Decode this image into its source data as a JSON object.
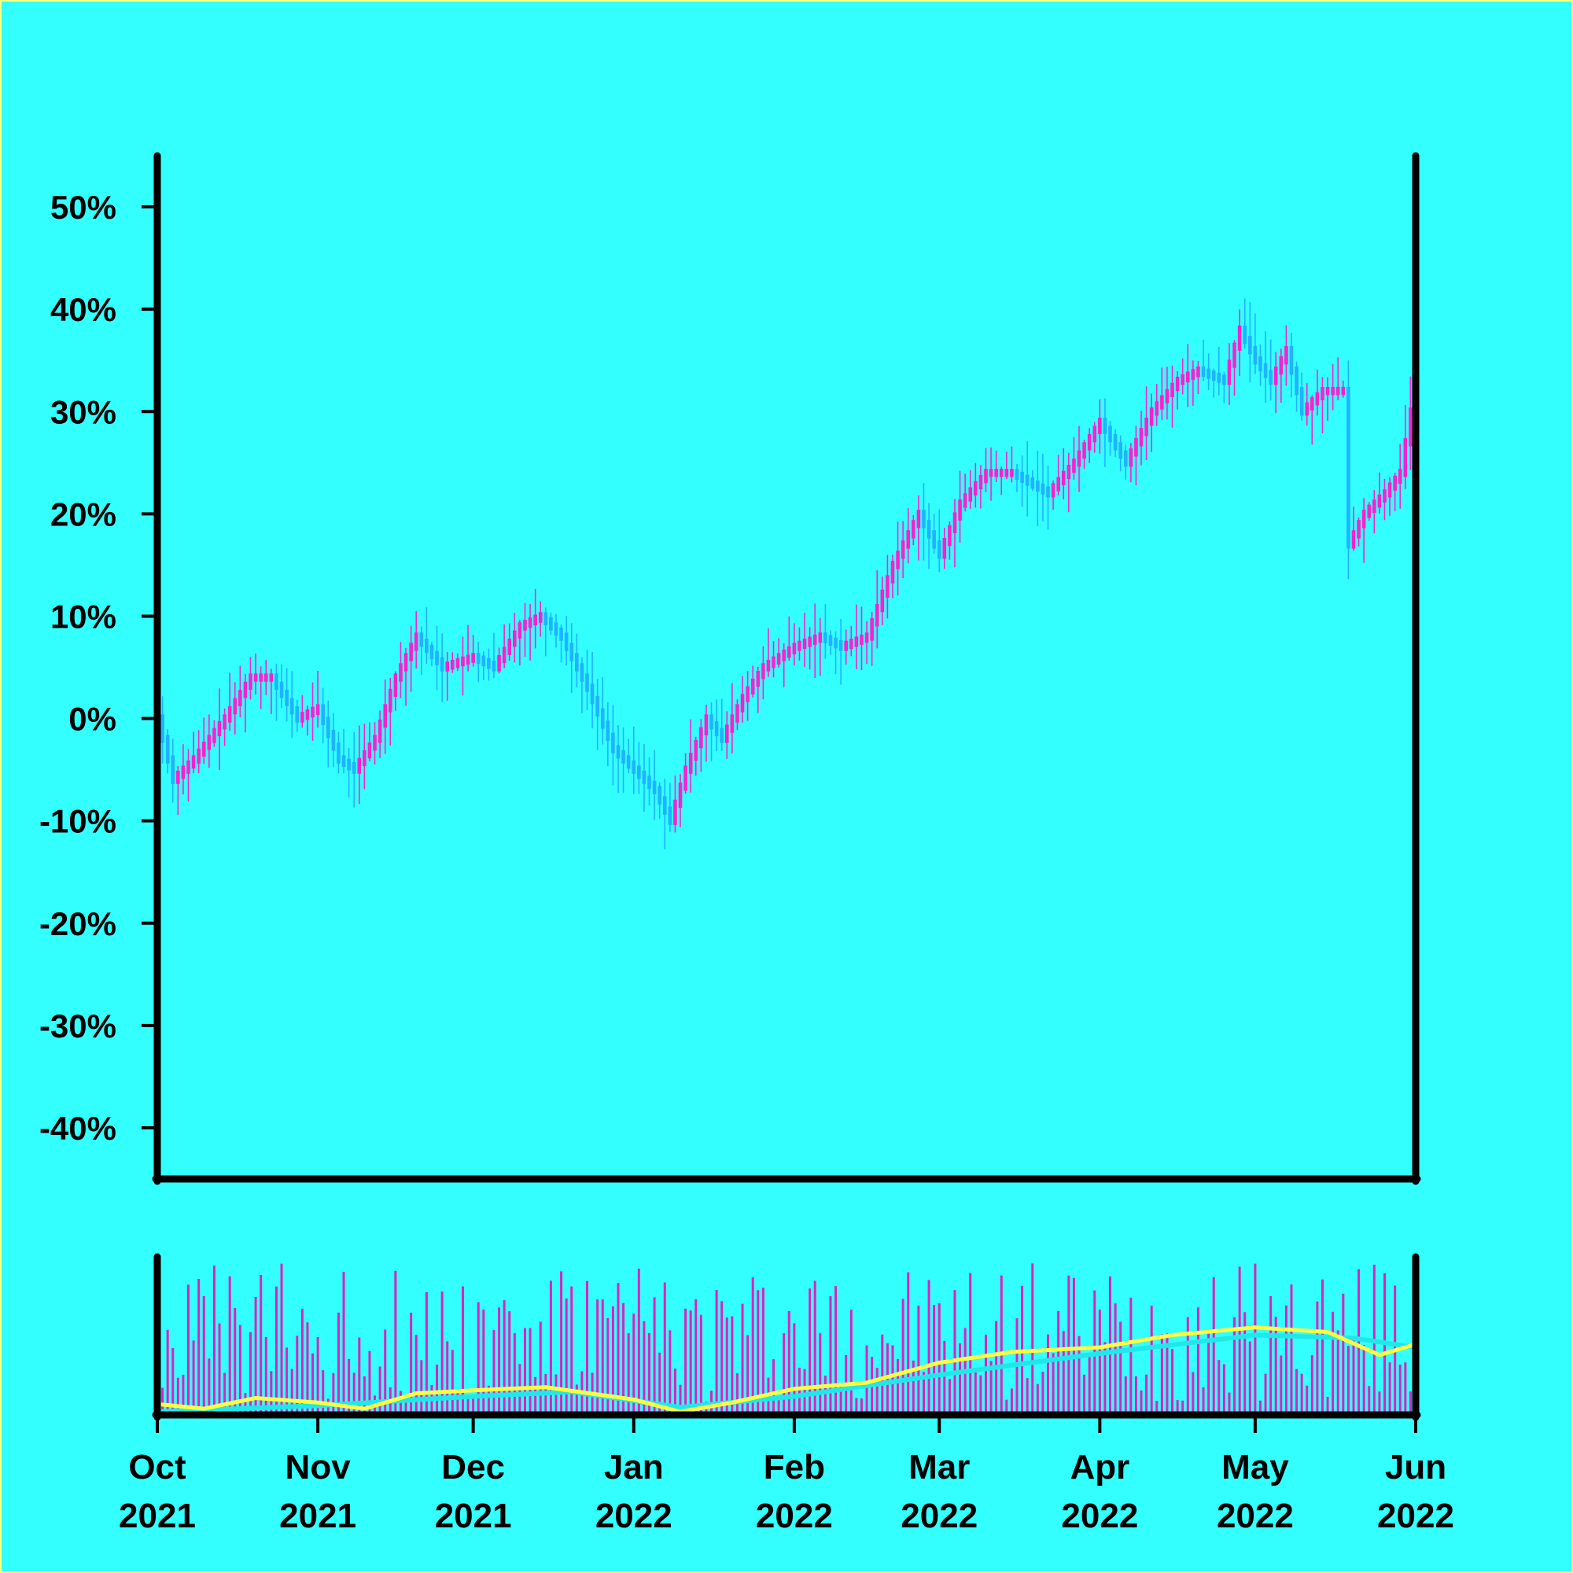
{
  "chart_data": [
    {
      "type": "candlestick",
      "title": "",
      "xlabel": "",
      "ylabel": "",
      "y_unit": "%",
      "ylim": [
        -45,
        55
      ],
      "xlim": [
        "2021-10-01",
        "2022-06-01"
      ],
      "yticks": [
        {
          "value": 50,
          "label": "50%"
        },
        {
          "value": 40,
          "label": "40%"
        },
        {
          "value": 30,
          "label": "30%"
        },
        {
          "value": 20,
          "label": "20%"
        },
        {
          "value": 10,
          "label": "10%"
        },
        {
          "value": 0,
          "label": "0%"
        },
        {
          "value": -10,
          "label": "-10%"
        },
        {
          "value": -20,
          "label": "-20%"
        },
        {
          "value": -30,
          "label": "-30%"
        },
        {
          "value": -40,
          "label": "-40%"
        }
      ],
      "grid": false,
      "colors": {
        "up": "#ff1fcf",
        "down": "#1fb3ff"
      },
      "series": [
        {
          "date": "2021-10-01",
          "close": 0.0
        },
        {
          "date": "2021-10-04",
          "close": -6.0
        },
        {
          "date": "2021-10-08",
          "close": -4.0
        },
        {
          "date": "2021-10-14",
          "close": 0.0
        },
        {
          "date": "2021-10-19",
          "close": 4.0
        },
        {
          "date": "2021-10-23",
          "close": 4.0
        },
        {
          "date": "2021-10-28",
          "close": 0.0
        },
        {
          "date": "2021-11-01",
          "close": 1.0
        },
        {
          "date": "2021-11-05",
          "close": -4.0
        },
        {
          "date": "2021-11-08",
          "close": -5.0
        },
        {
          "date": "2021-11-12",
          "close": -2.0
        },
        {
          "date": "2021-11-16",
          "close": 4.0
        },
        {
          "date": "2021-11-20",
          "close": 8.0
        },
        {
          "date": "2021-11-25",
          "close": 5.0
        },
        {
          "date": "2021-12-01",
          "close": 6.0
        },
        {
          "date": "2021-12-05",
          "close": 5.0
        },
        {
          "date": "2021-12-10",
          "close": 9.0
        },
        {
          "date": "2021-12-14",
          "close": 10.0
        },
        {
          "date": "2021-12-18",
          "close": 8.0
        },
        {
          "date": "2021-12-23",
          "close": 3.0
        },
        {
          "date": "2021-12-28",
          "close": -3.0
        },
        {
          "date": "2022-01-01",
          "close": -5.0
        },
        {
          "date": "2022-01-05",
          "close": -7.0
        },
        {
          "date": "2022-01-08",
          "close": -10.0
        },
        {
          "date": "2022-01-11",
          "close": -5.0
        },
        {
          "date": "2022-01-15",
          "close": 0.0
        },
        {
          "date": "2022-01-18",
          "close": -2.0
        },
        {
          "date": "2022-01-22",
          "close": 2.0
        },
        {
          "date": "2022-01-26",
          "close": 5.0
        },
        {
          "date": "2022-02-01",
          "close": 7.0
        },
        {
          "date": "2022-02-06",
          "close": 8.0
        },
        {
          "date": "2022-02-10",
          "close": 7.0
        },
        {
          "date": "2022-02-15",
          "close": 8.0
        },
        {
          "date": "2022-02-20",
          "close": 15.0
        },
        {
          "date": "2022-02-25",
          "close": 20.0
        },
        {
          "date": "2022-03-01",
          "close": 16.0
        },
        {
          "date": "2022-03-05",
          "close": 21.0
        },
        {
          "date": "2022-03-10",
          "close": 24.0
        },
        {
          "date": "2022-03-15",
          "close": 24.0
        },
        {
          "date": "2022-03-22",
          "close": 22.0
        },
        {
          "date": "2022-03-27",
          "close": 25.0
        },
        {
          "date": "2022-04-01",
          "close": 29.0
        },
        {
          "date": "2022-04-06",
          "close": 25.0
        },
        {
          "date": "2022-04-11",
          "close": 30.0
        },
        {
          "date": "2022-04-16",
          "close": 33.0
        },
        {
          "date": "2022-04-20",
          "close": 34.0
        },
        {
          "date": "2022-04-25",
          "close": 33.0
        },
        {
          "date": "2022-04-28",
          "close": 38.0
        },
        {
          "date": "2022-05-01",
          "close": 35.0
        },
        {
          "date": "2022-05-04",
          "close": 33.0
        },
        {
          "date": "2022-05-07",
          "close": 36.0
        },
        {
          "date": "2022-05-10",
          "close": 30.0
        },
        {
          "date": "2022-05-14",
          "close": 32.0
        },
        {
          "date": "2022-05-18",
          "close": 32.0
        },
        {
          "date": "2022-05-19",
          "close": 17.0
        },
        {
          "date": "2022-05-22",
          "close": 20.0
        },
        {
          "date": "2022-05-26",
          "close": 22.0
        },
        {
          "date": "2022-05-29",
          "close": 24.0
        },
        {
          "date": "2022-06-01",
          "close": 33.0
        }
      ]
    },
    {
      "type": "bar",
      "title": "",
      "xlabel": "",
      "ylabel": "",
      "note": "volume panel with two moving-average lines",
      "bar_color": "#e020c0",
      "line_colors": [
        "#ffff40",
        "#20e8e8"
      ],
      "xticks": [
        {
          "date": "2021-10-01",
          "label_top": "Oct",
          "label_bottom": "2021"
        },
        {
          "date": "2021-11-01",
          "label_top": "Nov",
          "label_bottom": "2021"
        },
        {
          "date": "2021-12-01",
          "label_top": "Dec",
          "label_bottom": "2021"
        },
        {
          "date": "2022-01-01",
          "label_top": "Jan",
          "label_bottom": "2022"
        },
        {
          "date": "2022-02-01",
          "label_top": "Feb",
          "label_bottom": "2022"
        },
        {
          "date": "2022-03-01",
          "label_top": "Mar",
          "label_bottom": "2022"
        },
        {
          "date": "2022-04-01",
          "label_top": "Apr",
          "label_bottom": "2022"
        },
        {
          "date": "2022-05-01",
          "label_top": "May",
          "label_bottom": "2022"
        },
        {
          "date": "2022-06-01",
          "label_top": "Jun",
          "label_bottom": "2022"
        }
      ],
      "ma_fast": [
        {
          "date": "2021-10-01",
          "value": 0.05
        },
        {
          "date": "2021-10-10",
          "value": 0.02
        },
        {
          "date": "2021-10-20",
          "value": 0.09
        },
        {
          "date": "2021-11-01",
          "value": 0.06
        },
        {
          "date": "2021-11-10",
          "value": 0.02
        },
        {
          "date": "2021-11-20",
          "value": 0.12
        },
        {
          "date": "2021-12-01",
          "value": 0.14
        },
        {
          "date": "2021-12-15",
          "value": 0.16
        },
        {
          "date": "2022-01-01",
          "value": 0.08
        },
        {
          "date": "2022-01-10",
          "value": 0.0
        },
        {
          "date": "2022-01-20",
          "value": 0.06
        },
        {
          "date": "2022-02-01",
          "value": 0.15
        },
        {
          "date": "2022-02-15",
          "value": 0.19
        },
        {
          "date": "2022-03-01",
          "value": 0.32
        },
        {
          "date": "2022-03-15",
          "value": 0.39
        },
        {
          "date": "2022-04-01",
          "value": 0.42
        },
        {
          "date": "2022-04-15",
          "value": 0.5
        },
        {
          "date": "2022-05-01",
          "value": 0.55
        },
        {
          "date": "2022-05-15",
          "value": 0.52
        },
        {
          "date": "2022-05-25",
          "value": 0.37
        },
        {
          "date": "2022-06-01",
          "value": 0.44
        }
      ],
      "ma_slow": [
        {
          "date": "2021-10-01",
          "value": 0.0
        },
        {
          "date": "2021-11-01",
          "value": 0.04
        },
        {
          "date": "2021-12-01",
          "value": 0.1
        },
        {
          "date": "2021-12-20",
          "value": 0.13
        },
        {
          "date": "2022-01-10",
          "value": 0.03
        },
        {
          "date": "2022-02-01",
          "value": 0.1
        },
        {
          "date": "2022-03-01",
          "value": 0.24
        },
        {
          "date": "2022-04-01",
          "value": 0.38
        },
        {
          "date": "2022-05-01",
          "value": 0.5
        },
        {
          "date": "2022-05-20",
          "value": 0.48
        },
        {
          "date": "2022-06-01",
          "value": 0.42
        }
      ]
    }
  ]
}
